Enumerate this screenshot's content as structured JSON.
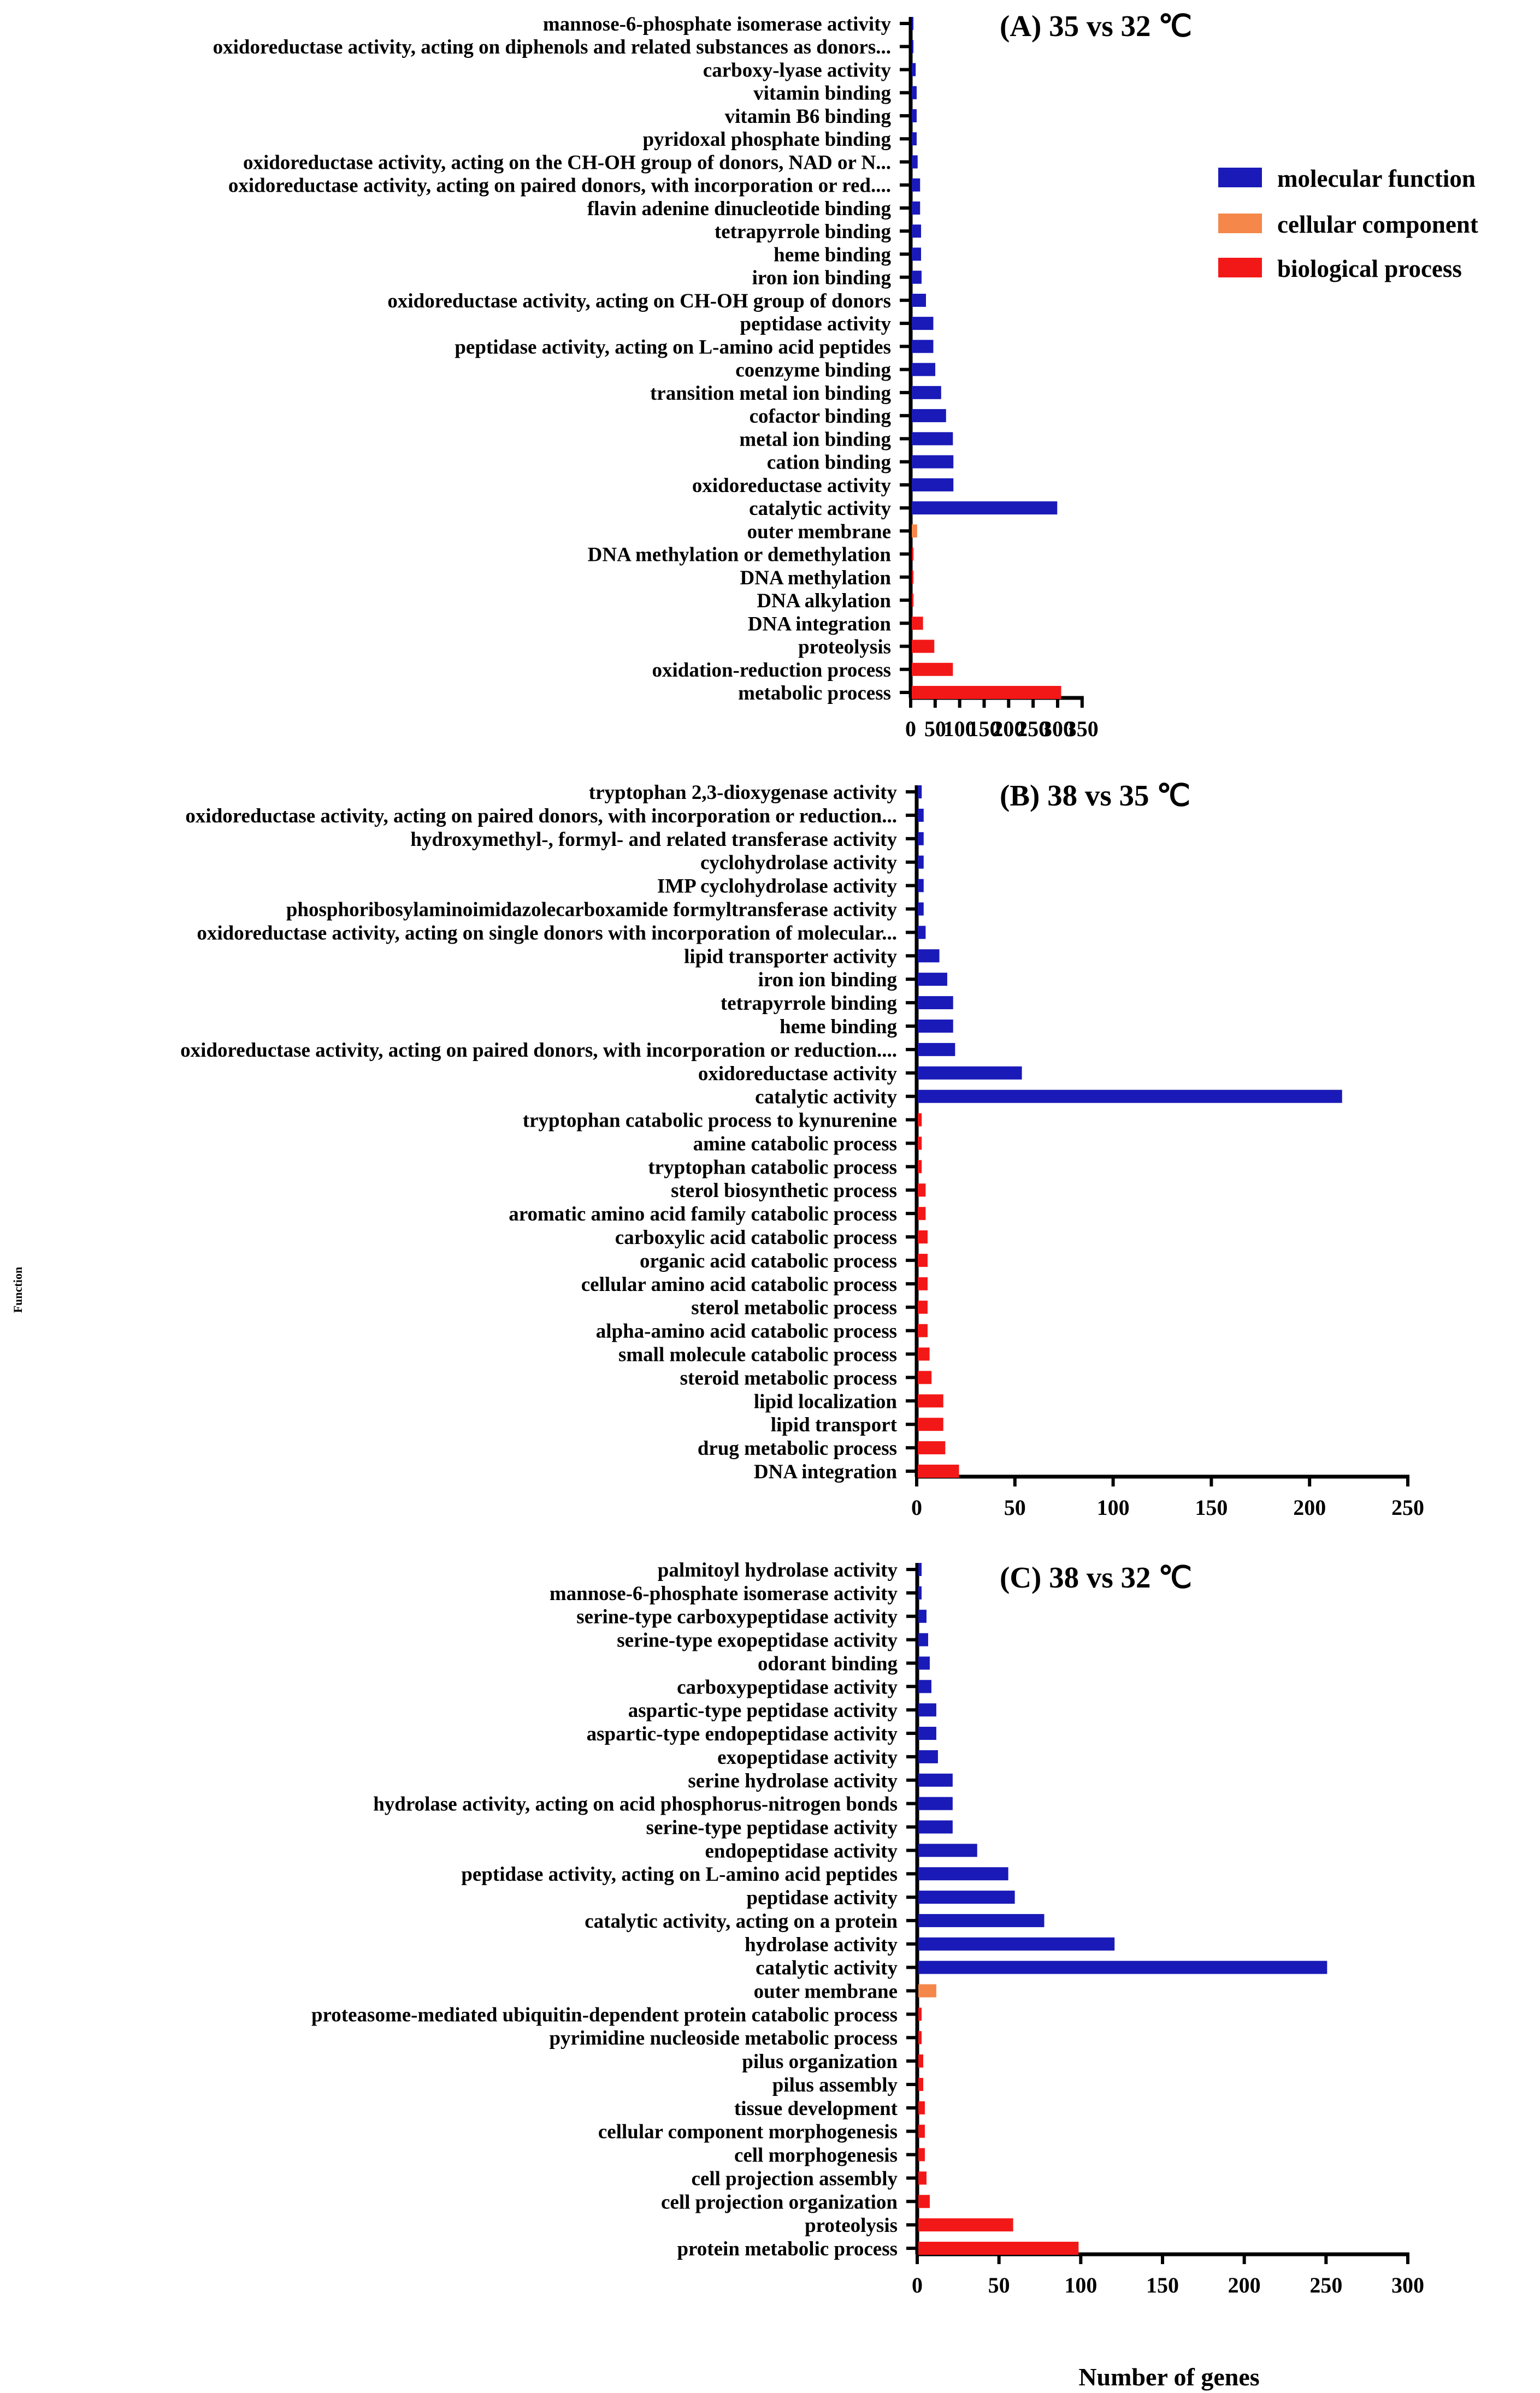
{
  "chart_data": [
    {
      "type": "bar",
      "orientation": "horizontal",
      "title": "(A) 35 vs 32 ℃",
      "xlim": [
        0,
        350
      ],
      "xticks": [
        0,
        50,
        100,
        150,
        200,
        250,
        300,
        350
      ],
      "categories": [
        "mannose-6-phosphate isomerase activity",
        "oxidoreductase activity, acting on diphenols and related substances as donors...",
        "carboxy-lyase activity",
        "vitamin binding",
        "vitamin B6 binding",
        "pyridoxal phosphate binding",
        "oxidoreductase activity, acting on the CH-OH group of donors, NAD or N...",
        "oxidoreductase activity, acting on paired donors, with incorporation or red....",
        "flavin adenine dinucleotide binding",
        "tetrapyrrole binding",
        "heme binding",
        "iron ion binding",
        "oxidoreductase activity, acting on CH-OH group of donors",
        "peptidase activity",
        "peptidase activity, acting on L-amino acid peptides",
        "coenzyme binding",
        "transition metal ion binding",
        "cofactor binding",
        "metal ion binding",
        "cation binding",
        "oxidoreductase activity",
        "catalytic activity",
        "outer membrane",
        "DNA methylation or demethylation",
        "DNA methylation",
        "DNA alkylation",
        "DNA integration",
        "proteolysis",
        "oxidation-reduction process",
        "metabolic process"
      ],
      "values": [
        3,
        3,
        8,
        10,
        10,
        10,
        12,
        17,
        17,
        19,
        19,
        20,
        29,
        44,
        44,
        48,
        60,
        70,
        84,
        85,
        85,
        297,
        11,
        2,
        2,
        2,
        23,
        46,
        84,
        305
      ],
      "groups": [
        "mf",
        "mf",
        "mf",
        "mf",
        "mf",
        "mf",
        "mf",
        "mf",
        "mf",
        "mf",
        "mf",
        "mf",
        "mf",
        "mf",
        "mf",
        "mf",
        "mf",
        "mf",
        "mf",
        "mf",
        "mf",
        "mf",
        "cc",
        "bp",
        "bp",
        "bp",
        "bp",
        "bp",
        "bp",
        "bp"
      ]
    },
    {
      "type": "bar",
      "orientation": "horizontal",
      "title": "(B) 38 vs 35 ℃",
      "xlim": [
        0,
        250
      ],
      "xticks": [
        0,
        50,
        100,
        150,
        200,
        250
      ],
      "categories": [
        "tryptophan 2,3-dioxygenase activity",
        "oxidoreductase activity, acting on paired donors, with incorporation or reduction...",
        "hydroxymethyl-, formyl- and related transferase activity",
        "cyclohydrolase activity",
        "IMP cyclohydrolase activity",
        "phosphoribosylaminoimidazolecarboxamide formyltransferase activity",
        "oxidoreductase activity, acting on single donors with incorporation of molecular...",
        "lipid transporter activity",
        "iron ion binding",
        "tetrapyrrole binding",
        "heme binding",
        "oxidoreductase activity, acting on paired donors, with incorporation or reduction....",
        "oxidoreductase activity",
        "catalytic activity",
        "tryptophan catabolic process to kynurenine",
        "amine catabolic process",
        "tryptophan catabolic process",
        "sterol biosynthetic process",
        "aromatic amino acid family catabolic process",
        "carboxylic acid catabolic process",
        "organic acid catabolic process",
        "cellular amino acid catabolic process",
        "sterol metabolic process",
        "alpha-amino acid catabolic process",
        "small molecule catabolic process",
        "steroid metabolic process",
        "lipid localization",
        "lipid transport",
        "drug metabolic process",
        "DNA integration"
      ],
      "values": [
        2,
        3,
        3,
        3,
        3,
        3,
        4,
        11,
        15,
        18,
        18,
        19,
        53,
        216,
        2,
        2,
        2,
        4,
        4,
        5,
        5,
        5,
        5,
        5,
        6,
        7,
        13,
        13,
        14,
        21
      ],
      "groups": [
        "mf",
        "mf",
        "mf",
        "mf",
        "mf",
        "mf",
        "mf",
        "mf",
        "mf",
        "mf",
        "mf",
        "mf",
        "mf",
        "mf",
        "bp",
        "bp",
        "bp",
        "bp",
        "bp",
        "bp",
        "bp",
        "bp",
        "bp",
        "bp",
        "bp",
        "bp",
        "bp",
        "bp",
        "bp",
        "bp"
      ]
    },
    {
      "type": "bar",
      "orientation": "horizontal",
      "title": "(C) 38 vs 32 ℃",
      "xlim": [
        0,
        300
      ],
      "xticks": [
        0,
        50,
        100,
        150,
        200,
        250,
        300
      ],
      "xlabel": "Number of genes",
      "categories": [
        "palmitoyl hydrolase activity",
        "mannose-6-phosphate isomerase activity",
        "serine-type carboxypeptidase activity",
        "serine-type exopeptidase activity",
        "odorant binding",
        "carboxypeptidase activity",
        "aspartic-type peptidase activity",
        "aspartic-type endopeptidase activity",
        "exopeptidase activity",
        "serine hydrolase activity",
        "hydrolase activity, acting on acid phosphorus-nitrogen bonds",
        "serine-type peptidase activity",
        "endopeptidase activity",
        "peptidase activity, acting on L-amino acid peptides",
        "peptidase activity",
        "catalytic activity, acting on a protein",
        "hydrolase activity",
        "catalytic activity",
        "outer membrane",
        "proteasome-mediated ubiquitin-dependent protein catabolic process",
        "pyrimidine nucleoside metabolic process",
        "pilus organization",
        "pilus assembly",
        "tissue development",
        "cellular component morphogenesis",
        "cell morphogenesis",
        "cell projection assembly",
        "cell projection organization",
        "proteolysis",
        "protein metabolic process"
      ],
      "values": [
        2,
        2,
        5,
        6,
        7,
        8,
        11,
        11,
        12,
        21,
        21,
        21,
        36,
        55,
        59,
        77,
        120,
        250,
        11,
        2,
        2,
        3,
        3,
        4,
        4,
        4,
        5,
        7,
        58,
        98
      ],
      "groups": [
        "mf",
        "mf",
        "mf",
        "mf",
        "mf",
        "mf",
        "mf",
        "mf",
        "mf",
        "mf",
        "mf",
        "mf",
        "mf",
        "mf",
        "mf",
        "mf",
        "mf",
        "mf",
        "cc",
        "bp",
        "bp",
        "bp",
        "bp",
        "bp",
        "bp",
        "bp",
        "bp",
        "bp",
        "bp",
        "bp"
      ]
    }
  ],
  "legend": {
    "position": "top-right of panel A",
    "items": [
      {
        "key": "mf",
        "label": "molecular function",
        "color": "#1a1ab8"
      },
      {
        "key": "cc",
        "label": "cellular component",
        "color": "#f5874a"
      },
      {
        "key": "bp",
        "label": "biological process",
        "color": "#f31818"
      }
    ]
  },
  "ylabel": "Function",
  "xlabel": "Number of genes"
}
